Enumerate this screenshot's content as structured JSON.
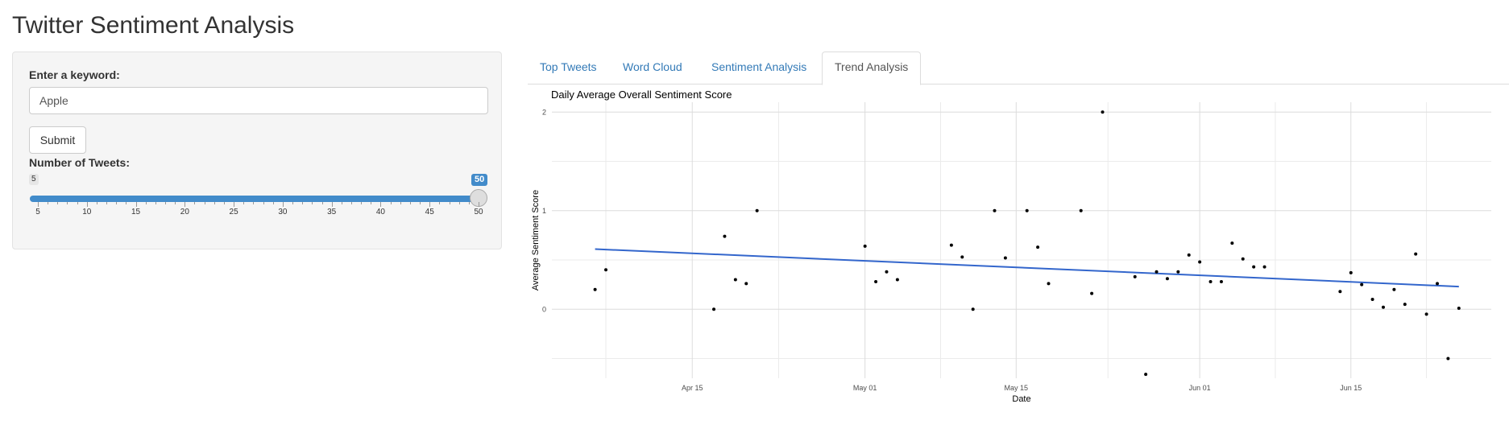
{
  "page": {
    "title": "Twitter Sentiment Analysis"
  },
  "sidebar": {
    "keyword_label": "Enter a keyword:",
    "keyword_value": "Apple",
    "submit_label": "Submit",
    "tweets_label": "Number of Tweets:",
    "slider": {
      "min": 5,
      "max": 50,
      "value": 50,
      "min_label": "5",
      "value_label": "50",
      "tick_labels": [
        "5",
        "10",
        "15",
        "20",
        "25",
        "30",
        "35",
        "40",
        "45",
        "50"
      ]
    },
    "accent_color": "#428bca"
  },
  "tabs": [
    {
      "label": "Top Tweets",
      "active": false
    },
    {
      "label": "Word Cloud",
      "active": false
    },
    {
      "label": "Sentiment Analysis",
      "active": false
    },
    {
      "label": "Trend Analysis",
      "active": true
    }
  ],
  "chart_data": {
    "type": "scatter",
    "title": "Daily Average Overall Sentiment Score",
    "xlabel": "Date",
    "ylabel": "Average Sentiment Score",
    "x_ticks": [
      {
        "date": "2024-04-15",
        "label": "Apr 15"
      },
      {
        "date": "2024-05-01",
        "label": "May 01"
      },
      {
        "date": "2024-05-15",
        "label": "May 15"
      },
      {
        "date": "2024-06-01",
        "label": "Jun 01"
      },
      {
        "date": "2024-06-15",
        "label": "Jun 15"
      }
    ],
    "y_ticks": [
      {
        "value": 0,
        "label": "0"
      },
      {
        "value": 1,
        "label": "1"
      },
      {
        "value": 2,
        "label": "2"
      }
    ],
    "xlim": [
      "2024-04-02",
      "2024-06-28"
    ],
    "ylim": [
      -0.7,
      2.1
    ],
    "grid": true,
    "point_color": "#000000",
    "trend_color": "#3366cc",
    "points": [
      {
        "x": "2024-04-06",
        "y": 0.2
      },
      {
        "x": "2024-04-07",
        "y": 0.4
      },
      {
        "x": "2024-04-17",
        "y": 0.0
      },
      {
        "x": "2024-04-18",
        "y": 0.74
      },
      {
        "x": "2024-04-19",
        "y": 0.3
      },
      {
        "x": "2024-04-20",
        "y": 0.26
      },
      {
        "x": "2024-04-21",
        "y": 1.0
      },
      {
        "x": "2024-05-01",
        "y": 0.64
      },
      {
        "x": "2024-05-02",
        "y": 0.28
      },
      {
        "x": "2024-05-03",
        "y": 0.38
      },
      {
        "x": "2024-05-04",
        "y": 0.3
      },
      {
        "x": "2024-05-09",
        "y": 0.65
      },
      {
        "x": "2024-05-10",
        "y": 0.53
      },
      {
        "x": "2024-05-11",
        "y": 0.0
      },
      {
        "x": "2024-05-13",
        "y": 1.0
      },
      {
        "x": "2024-05-14",
        "y": 0.52
      },
      {
        "x": "2024-05-16",
        "y": 1.0
      },
      {
        "x": "2024-05-17",
        "y": 0.63
      },
      {
        "x": "2024-05-18",
        "y": 0.26
      },
      {
        "x": "2024-05-21",
        "y": 1.0
      },
      {
        "x": "2024-05-22",
        "y": 0.16
      },
      {
        "x": "2024-05-23",
        "y": 2.0
      },
      {
        "x": "2024-05-26",
        "y": 0.33
      },
      {
        "x": "2024-05-27",
        "y": -0.66
      },
      {
        "x": "2024-05-28",
        "y": 0.38
      },
      {
        "x": "2024-05-29",
        "y": 0.31
      },
      {
        "x": "2024-05-30",
        "y": 0.38
      },
      {
        "x": "2024-05-31",
        "y": 0.55
      },
      {
        "x": "2024-06-01",
        "y": 0.48
      },
      {
        "x": "2024-06-02",
        "y": 0.28
      },
      {
        "x": "2024-06-03",
        "y": 0.28
      },
      {
        "x": "2024-06-04",
        "y": 0.67
      },
      {
        "x": "2024-06-05",
        "y": 0.51
      },
      {
        "x": "2024-06-06",
        "y": 0.43
      },
      {
        "x": "2024-06-07",
        "y": 0.43
      },
      {
        "x": "2024-06-14",
        "y": 0.18
      },
      {
        "x": "2024-06-15",
        "y": 0.37
      },
      {
        "x": "2024-06-16",
        "y": 0.25
      },
      {
        "x": "2024-06-17",
        "y": 0.1
      },
      {
        "x": "2024-06-18",
        "y": 0.02
      },
      {
        "x": "2024-06-19",
        "y": 0.2
      },
      {
        "x": "2024-06-20",
        "y": 0.05
      },
      {
        "x": "2024-06-21",
        "y": 0.56
      },
      {
        "x": "2024-06-22",
        "y": -0.05
      },
      {
        "x": "2024-06-23",
        "y": 0.26
      },
      {
        "x": "2024-06-24",
        "y": -0.5
      },
      {
        "x": "2024-06-25",
        "y": 0.01
      }
    ],
    "trend_line": {
      "start": {
        "x": "2024-04-06",
        "y": 0.61
      },
      "end": {
        "x": "2024-06-25",
        "y": 0.23
      }
    }
  }
}
